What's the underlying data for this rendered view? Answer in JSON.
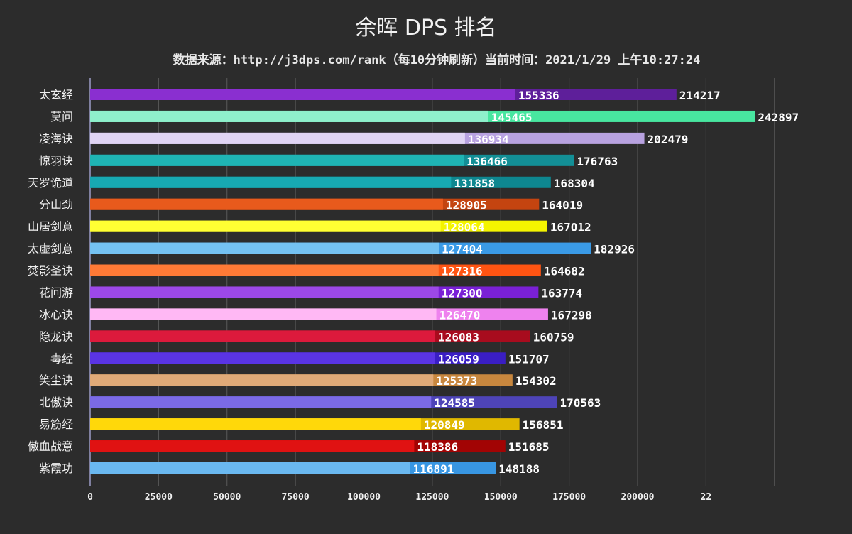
{
  "chart_data": {
    "type": "bar",
    "orientation": "horizontal",
    "title": "余晖 DPS 排名",
    "subtitle": "数据来源：http://j3dps.com/rank（每10分钟刷新）当前时间：2021/1/29 上午10:27:24",
    "categories": [
      "太玄经",
      "莫问",
      "凌海诀",
      "惊羽诀",
      "天罗诡道",
      "分山劲",
      "山居剑意",
      "太虚剑意",
      "焚影圣诀",
      "花间游",
      "冰心诀",
      "隐龙诀",
      "毒经",
      "笑尘诀",
      "北傲诀",
      "易筋经",
      "傲血战意",
      "紫霞功"
    ],
    "series": [
      {
        "values": [
          155336,
          145465,
          136934,
          136466,
          131858,
          128905,
          128064,
          127404,
          127316,
          127300,
          126470,
          126083,
          126059,
          125373,
          124585,
          120849,
          118386,
          116891
        ]
      },
      {
        "values": [
          214217,
          242897,
          202479,
          176763,
          168304,
          164019,
          167012,
          182926,
          164682,
          163774,
          167298,
          160759,
          151707,
          154302,
          170563,
          156851,
          151685,
          148188
        ]
      }
    ],
    "colors": [
      [
        "#8a2fd0",
        "#5e1f9a"
      ],
      [
        "#8ff0cc",
        "#48e6a0"
      ],
      [
        "#e0d4f4",
        "#b8a2e0"
      ],
      [
        "#1fb4b4",
        "#138f96"
      ],
      [
        "#17a9b2",
        "#0e8790"
      ],
      [
        "#e85a1c",
        "#c44410"
      ],
      [
        "#ffff33",
        "#f4f400"
      ],
      [
        "#74c2f2",
        "#3a9ae6"
      ],
      [
        "#ff7a36",
        "#ff5412"
      ],
      [
        "#9c48e8",
        "#7a20d6"
      ],
      [
        "#ffb8f4",
        "#ee82ee"
      ],
      [
        "#dc1a3c",
        "#a80c1e"
      ],
      [
        "#5a34e4",
        "#3a1ec4"
      ],
      [
        "#e0aa78",
        "#c8873e"
      ],
      [
        "#7b6ae6",
        "#4e44b8"
      ],
      [
        "#ffd80a",
        "#e0b800"
      ],
      [
        "#e01212",
        "#a20404"
      ],
      [
        "#6ab8f0",
        "#3896e2"
      ]
    ],
    "xticks": [
      "0",
      "25000",
      "50000",
      "75000",
      "100000",
      "125000",
      "150000",
      "175000",
      "200000",
      "22"
    ],
    "xlim": [
      0,
      250000
    ],
    "grid": true
  }
}
